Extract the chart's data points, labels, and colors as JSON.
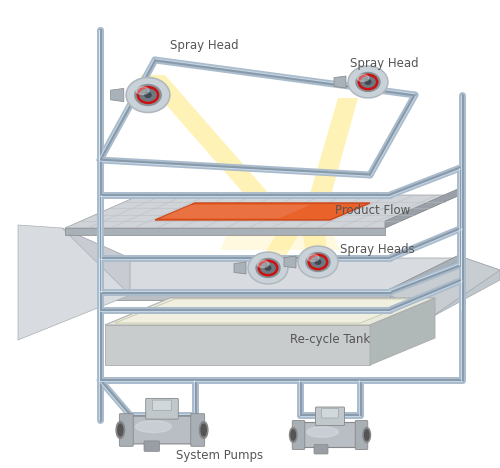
{
  "bg_color": "#ffffff",
  "labels": {
    "spray_head_top_left": "Spray Head",
    "spray_head_top_right": "Spray Head",
    "spray_heads_mid": "Spray Heads",
    "product_flow": "Product Flow",
    "recycle_tank": "Re-cycle Tank",
    "system_pumps": "System Pumps"
  },
  "colors": {
    "pipe_color": "#aabbcc",
    "pipe_dark": "#8899aa",
    "pipe_light": "#ddeeff",
    "conv_top": "#d0d4d8",
    "conv_stripe": "#b8bec4",
    "conv_side": "#a8b0b8",
    "product_orange": "#e8622a",
    "product_hi": "#f09070",
    "spray_yellow": "#ffe87a",
    "spray_light": "#fff5c0",
    "tank_top": "#e0e4d8",
    "tank_inner": "#f0efe0",
    "tank_body": "#c8cccc",
    "tank_right": "#b0b8b8",
    "label_color": "#555555",
    "red_ring": "#cc1111",
    "lower_panel_top": "#d8dce0",
    "lower_panel_side": "#b8bec4",
    "drain_panel": "#d0d5d8",
    "right_panel": "#c8cdd2"
  }
}
